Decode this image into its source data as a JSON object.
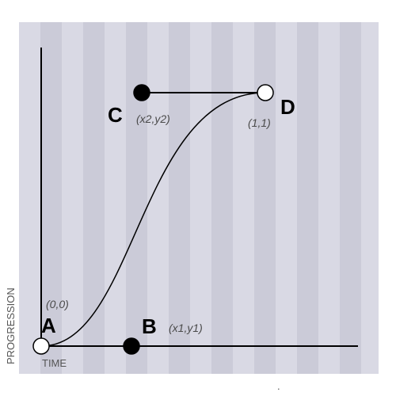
{
  "diagram": {
    "axis_labels": {
      "x": "TIME",
      "y": "PROGRESSION"
    },
    "points": {
      "a": {
        "label": "A",
        "coord": "(0,0)",
        "fill": "open"
      },
      "b": {
        "label": "B",
        "coord": "(x1,y1)",
        "fill": "filled"
      },
      "c": {
        "label": "C",
        "coord": "(x2,y2)",
        "fill": "filled"
      },
      "d": {
        "label": "D",
        "coord": "(1,1)",
        "fill": "open"
      }
    },
    "footer_mark": "."
  },
  "colors": {
    "stripe_light": "#d9d9e4",
    "stripe_dark": "#cbcbd8",
    "line": "#000000",
    "open_point_fill": "#ffffff",
    "filled_point_fill": "#000000"
  }
}
